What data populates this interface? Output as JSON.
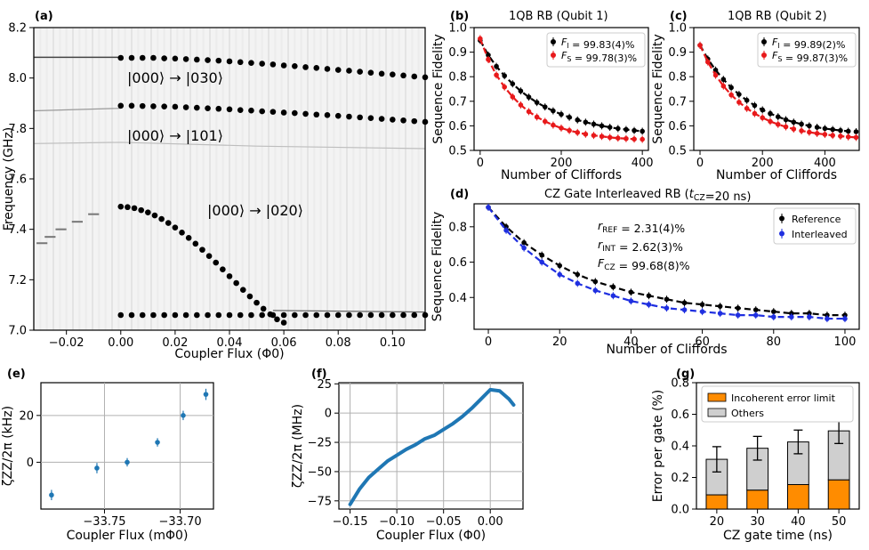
{
  "chart_data": [
    {
      "panel": "(a)",
      "type": "scatter",
      "xlabel": "Coupler Flux (Φ0)",
      "ylabel": "Frequency (GHz)",
      "xlim": [
        -0.032,
        0.112
      ],
      "ylim": [
        7.0,
        8.2
      ],
      "xticks": [
        "−0.02",
        "0.00",
        "0.02",
        "0.04",
        "0.06",
        "0.08",
        "0.10"
      ],
      "yticks": [
        "7.0",
        "7.2",
        "7.4",
        "7.6",
        "7.8",
        "8.0",
        "8.2"
      ],
      "annotations": [
        "|000⟩ → |030⟩",
        "|000⟩ → |101⟩",
        "|000⟩ → |020⟩"
      ],
      "series": [
        {
          "x": [
            0.0,
            0.004,
            0.008,
            0.012,
            0.016,
            0.02,
            0.024,
            0.028,
            0.032,
            0.036,
            0.04,
            0.044,
            0.048,
            0.052,
            0.056,
            0.06,
            0.064,
            0.068,
            0.072,
            0.076,
            0.08,
            0.084,
            0.088,
            0.092,
            0.096,
            0.1,
            0.104,
            0.108,
            0.112
          ],
          "y": [
            8.08,
            8.08,
            8.08,
            8.08,
            8.078,
            8.077,
            8.075,
            8.073,
            8.071,
            8.069,
            8.066,
            8.063,
            8.06,
            8.057,
            8.054,
            8.05,
            8.047,
            8.043,
            8.04,
            8.036,
            8.032,
            8.029,
            8.025,
            8.021,
            8.017,
            8.014,
            8.01,
            8.006,
            8.003
          ]
        },
        {
          "x": [
            0.0,
            0.004,
            0.008,
            0.012,
            0.016,
            0.02,
            0.024,
            0.028,
            0.032,
            0.036,
            0.04,
            0.044,
            0.048,
            0.052,
            0.056,
            0.06,
            0.064,
            0.068,
            0.072,
            0.076,
            0.08,
            0.084,
            0.088,
            0.092,
            0.096,
            0.1,
            0.104,
            0.108,
            0.112
          ],
          "y": [
            7.89,
            7.89,
            7.889,
            7.888,
            7.887,
            7.886,
            7.884,
            7.882,
            7.88,
            7.878,
            7.876,
            7.873,
            7.871,
            7.868,
            7.866,
            7.863,
            7.861,
            7.858,
            7.855,
            7.853,
            7.85,
            7.847,
            7.844,
            7.841,
            7.838,
            7.835,
            7.832,
            7.829,
            7.826
          ]
        },
        {
          "x": [
            0.0,
            0.0025,
            0.005,
            0.0075,
            0.01,
            0.0125,
            0.015,
            0.0175,
            0.02,
            0.0225,
            0.025,
            0.0275,
            0.03,
            0.0325,
            0.035,
            0.0375,
            0.04,
            0.0425,
            0.045,
            0.0475,
            0.05,
            0.0525,
            0.055,
            0.0575,
            0.06
          ],
          "y": [
            7.49,
            7.488,
            7.484,
            7.476,
            7.467,
            7.455,
            7.441,
            7.425,
            7.407,
            7.387,
            7.366,
            7.343,
            7.319,
            7.294,
            7.268,
            7.241,
            7.214,
            7.187,
            7.16,
            7.134,
            7.109,
            7.085,
            7.063,
            7.043,
            7.03
          ]
        },
        {
          "x": [
            0.0,
            0.004,
            0.008,
            0.012,
            0.016,
            0.02,
            0.024,
            0.028,
            0.032,
            0.036,
            0.04,
            0.044,
            0.048,
            0.052,
            0.056,
            0.06,
            0.064,
            0.068,
            0.072,
            0.076,
            0.08,
            0.084,
            0.088,
            0.092,
            0.096,
            0.1,
            0.104,
            0.108,
            0.112
          ],
          "y": [
            7.06,
            7.06,
            7.06,
            7.06,
            7.06,
            7.06,
            7.06,
            7.06,
            7.06,
            7.06,
            7.06,
            7.06,
            7.06,
            7.06,
            7.06,
            7.06,
            7.06,
            7.06,
            7.06,
            7.06,
            7.06,
            7.06,
            7.06,
            7.06,
            7.06,
            7.06,
            7.06,
            7.06,
            7.06
          ]
        }
      ]
    },
    {
      "panel": "(b)",
      "type": "line",
      "title": "1QB RB (Qubit 1)",
      "xlabel": "Number of Cliffords",
      "ylabel": "Sequence Fidelity",
      "xlim": [
        -15,
        415
      ],
      "ylim": [
        0.5,
        1.0
      ],
      "xticks": [
        "0",
        "200",
        "400"
      ],
      "yticks": [
        "0.5",
        "0.6",
        "0.7",
        "0.8",
        "0.9",
        "1.0"
      ],
      "legend": [
        "F_I = 99.83(4)%",
        "F_S = 99.78(3)%"
      ],
      "colors": [
        "#000000",
        "#e8191b"
      ],
      "series": [
        {
          "name": "F_I = 99.83(4)%",
          "x": [
            0,
            20,
            40,
            60,
            80,
            100,
            120,
            140,
            160,
            180,
            200,
            220,
            240,
            260,
            280,
            300,
            320,
            340,
            360,
            380,
            400
          ],
          "y": [
            0.948,
            0.888,
            0.842,
            0.804,
            0.771,
            0.742,
            0.717,
            0.695,
            0.677,
            0.661,
            0.647,
            0.635,
            0.624,
            0.615,
            0.607,
            0.6,
            0.594,
            0.589,
            0.585,
            0.581,
            0.578
          ]
        },
        {
          "name": "F_S = 99.78(3)%",
          "x": [
            0,
            20,
            40,
            60,
            80,
            100,
            120,
            140,
            160,
            180,
            200,
            220,
            240,
            260,
            280,
            300,
            320,
            340,
            360,
            380,
            400
          ],
          "y": [
            0.955,
            0.87,
            0.807,
            0.758,
            0.718,
            0.685,
            0.658,
            0.636,
            0.618,
            0.603,
            0.591,
            0.581,
            0.573,
            0.566,
            0.561,
            0.557,
            0.553,
            0.55,
            0.548,
            0.546,
            0.545
          ]
        }
      ]
    },
    {
      "panel": "(c)",
      "type": "line",
      "title": "1QB RB (Qubit 2)",
      "xlabel": "Number of Cliffords",
      "ylabel": "Sequence Fidelity",
      "xlim": [
        -20,
        510
      ],
      "ylim": [
        0.5,
        1.0
      ],
      "xticks": [
        "0",
        "200",
        "400"
      ],
      "yticks": [
        "0.5",
        "0.6",
        "0.7",
        "0.8",
        "0.9",
        "1.0"
      ],
      "legend": [
        "F_I = 99.89(2)%",
        "F_S = 99.87(3)%"
      ],
      "colors": [
        "#000000",
        "#e8191b"
      ],
      "series": [
        {
          "name": "F_I = 99.89(2)%",
          "x": [
            0,
            25,
            50,
            75,
            100,
            125,
            150,
            175,
            200,
            225,
            250,
            275,
            300,
            325,
            350,
            375,
            400,
            425,
            450,
            475,
            500
          ],
          "y": [
            0.928,
            0.872,
            0.827,
            0.789,
            0.756,
            0.728,
            0.704,
            0.683,
            0.665,
            0.65,
            0.637,
            0.625,
            0.615,
            0.607,
            0.6,
            0.594,
            0.589,
            0.585,
            0.581,
            0.578,
            0.576
          ]
        },
        {
          "name": "F_S = 99.87(3)%",
          "x": [
            0,
            25,
            50,
            75,
            100,
            125,
            150,
            175,
            200,
            225,
            250,
            275,
            300,
            325,
            350,
            375,
            400,
            425,
            450,
            475,
            500
          ],
          "y": [
            0.928,
            0.86,
            0.806,
            0.762,
            0.726,
            0.696,
            0.671,
            0.65,
            0.633,
            0.618,
            0.606,
            0.596,
            0.587,
            0.58,
            0.574,
            0.569,
            0.565,
            0.561,
            0.558,
            0.555,
            0.553
          ]
        }
      ]
    },
    {
      "panel": "(d)",
      "type": "line",
      "title": "CZ Gate Interleaved RB (t_CZ=20 ns)",
      "xlabel": "Number of Cliffords",
      "ylabel": "Sequence Fidelity",
      "xlim": [
        -4,
        104
      ],
      "ylim": [
        0.22,
        0.93
      ],
      "xticks": [
        "0",
        "20",
        "40",
        "60",
        "80",
        "100"
      ],
      "yticks": [
        "0.4",
        "0.6",
        "0.8"
      ],
      "legend": [
        "Reference",
        "Interleaved"
      ],
      "colors": [
        "#000000",
        "#1f2fe0"
      ],
      "annotations": [
        "r_REF = 2.31(4)%",
        "r_INT = 2.62(3)%",
        "F_CZ = 99.68(8)%"
      ],
      "series": [
        {
          "name": "Reference",
          "x": [
            0,
            5,
            10,
            15,
            20,
            25,
            30,
            35,
            40,
            45,
            50,
            55,
            60,
            65,
            70,
            75,
            80,
            85,
            90,
            95,
            100
          ],
          "y": [
            0.91,
            0.8,
            0.71,
            0.64,
            0.58,
            0.53,
            0.49,
            0.46,
            0.43,
            0.41,
            0.39,
            0.37,
            0.36,
            0.35,
            0.34,
            0.33,
            0.32,
            0.31,
            0.31,
            0.3,
            0.3
          ]
        },
        {
          "name": "Interleaved",
          "x": [
            0,
            5,
            10,
            15,
            20,
            25,
            30,
            35,
            40,
            45,
            50,
            55,
            60,
            65,
            70,
            75,
            80,
            85,
            90,
            95,
            100
          ],
          "y": [
            0.91,
            0.78,
            0.68,
            0.6,
            0.53,
            0.48,
            0.44,
            0.41,
            0.38,
            0.36,
            0.34,
            0.33,
            0.32,
            0.31,
            0.3,
            0.3,
            0.29,
            0.29,
            0.29,
            0.28,
            0.28
          ]
        }
      ]
    },
    {
      "panel": "(e)",
      "type": "scatter",
      "xlabel": "Coupler Flux (mΦ0)",
      "ylabel": "ζZZ/2π (kHz)",
      "xlim": [
        -33.792,
        -33.678
      ],
      "ylim": [
        -20,
        34
      ],
      "xticks": [
        "−33.75",
        "−33.70"
      ],
      "yticks": [
        "0",
        "20"
      ],
      "colors": [
        "#1f77b4"
      ],
      "series": [
        {
          "x": [
            -33.785,
            -33.755,
            -33.735,
            -33.715,
            -33.698,
            -33.683
          ],
          "y": [
            -14,
            -2.5,
            0,
            8.5,
            20,
            29
          ],
          "err": [
            2.2,
            2.2,
            1.8,
            1.8,
            2.0,
            2.4
          ]
        }
      ]
    },
    {
      "panel": "(f)",
      "type": "line",
      "xlabel": "Coupler Flux (Φ0)",
      "ylabel": "ζZZ/2π (MHz)",
      "xlim": [
        -0.162,
        0.035
      ],
      "ylim": [
        -82,
        26
      ],
      "xticks": [
        "−0.15",
        "−0.10",
        "−0.05",
        "0.00"
      ],
      "yticks": [
        "−75",
        "−50",
        "−25",
        "0",
        "25"
      ],
      "colors": [
        "#1f77b4"
      ],
      "series": [
        {
          "x": [
            -0.15,
            -0.14,
            -0.13,
            -0.12,
            -0.11,
            -0.1,
            -0.09,
            -0.08,
            -0.07,
            -0.06,
            -0.05,
            -0.04,
            -0.03,
            -0.02,
            -0.01,
            0.0,
            0.01,
            0.02,
            0.025
          ],
          "y": [
            -78,
            -65,
            -55,
            -48,
            -41,
            -36,
            -31,
            -27,
            -22,
            -19,
            -14,
            -9,
            -3,
            4,
            12,
            20,
            19,
            12,
            7
          ]
        }
      ]
    },
    {
      "panel": "(g)",
      "type": "bar",
      "xlabel": "CZ gate time (ns)",
      "ylabel": "Error per gate (%)",
      "categories": [
        "20",
        "30",
        "40",
        "50"
      ],
      "ylim": [
        0,
        0.8
      ],
      "yticks": [
        "0.0",
        "0.2",
        "0.4",
        "0.6",
        "0.8"
      ],
      "legend": [
        "Incoherent error limit",
        "Others"
      ],
      "colors": [
        "#ff8c00",
        "#cfcfcf"
      ],
      "series": [
        {
          "name": "Incoherent error limit",
          "values": [
            0.09,
            0.12,
            0.155,
            0.185
          ]
        },
        {
          "name": "Others",
          "values": [
            0.225,
            0.265,
            0.27,
            0.31
          ]
        }
      ],
      "total_err": [
        0.08,
        0.075,
        0.075,
        0.08
      ]
    }
  ]
}
